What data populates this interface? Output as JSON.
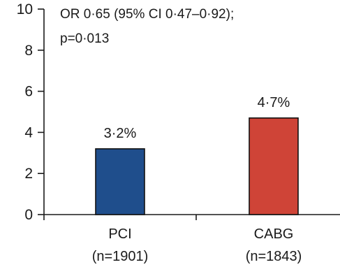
{
  "chart_data": {
    "type": "bar",
    "categories": [
      "PCI",
      "CABG"
    ],
    "category_sublabels": [
      "(n=1901)",
      "(n=1843)"
    ],
    "values": [
      3.2,
      4.7
    ],
    "data_labels": [
      "3·2%",
      "4·7%"
    ],
    "bar_colors": [
      "#1f4e8c",
      "#cf4437"
    ],
    "annotation": [
      "OR 0·65 (95% CI 0·47–0·92);",
      "p=0·013"
    ],
    "title": "",
    "xlabel": "",
    "ylabel": "",
    "ylim": [
      0,
      10
    ],
    "yticks": [
      0,
      2,
      4,
      6,
      8,
      10
    ],
    "ytick_labels": [
      "0",
      "2",
      "4",
      "6",
      "8",
      "10"
    ],
    "grid": false,
    "legend": "none"
  }
}
